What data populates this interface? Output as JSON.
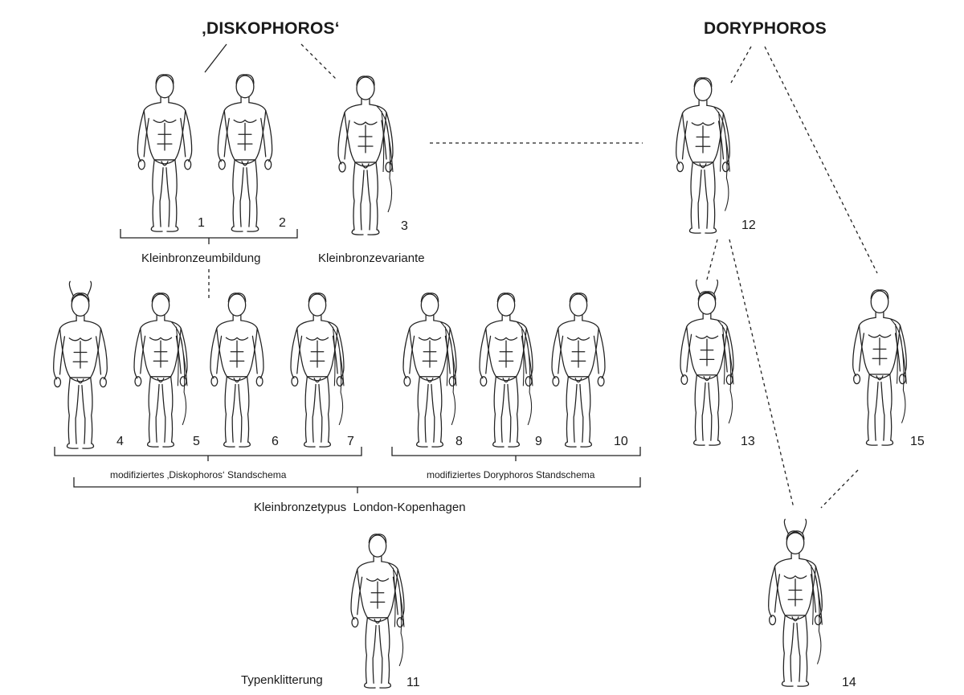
{
  "groups": {
    "diskophoros": "‚DISKOPHOROS‘",
    "doryphoros": "DORYPHOROS"
  },
  "figures": [
    {
      "num": "1",
      "drape": false
    },
    {
      "num": "2",
      "drape": false
    },
    {
      "num": "3",
      "drape": true
    },
    {
      "num": "4",
      "drape": false,
      "helmet": true
    },
    {
      "num": "5",
      "drape": true
    },
    {
      "num": "6",
      "drape": false
    },
    {
      "num": "7",
      "drape": true
    },
    {
      "num": "8",
      "drape": true
    },
    {
      "num": "9",
      "drape": true
    },
    {
      "num": "10",
      "drape": false
    },
    {
      "num": "11",
      "drape": true
    },
    {
      "num": "12",
      "drape": true
    },
    {
      "num": "13",
      "drape": true,
      "helmet": true
    },
    {
      "num": "14",
      "drape": true,
      "helmet": true
    },
    {
      "num": "15",
      "drape": true
    }
  ],
  "captions": {
    "kleinbronzeumbildung": "Kleinbronzeumbildung",
    "kleinbronzevariante": "Kleinbronzevariante",
    "diskophoros_standschema": "modifiziertes ‚Diskophoros‘ Standschema",
    "doryphoros_standschema": "modifiziertes Doryphoros Standschema",
    "kleinbronzetypus": "Kleinbronzetypus  London-Kopenhagen",
    "typenklitterung": "Typenklitterung"
  }
}
